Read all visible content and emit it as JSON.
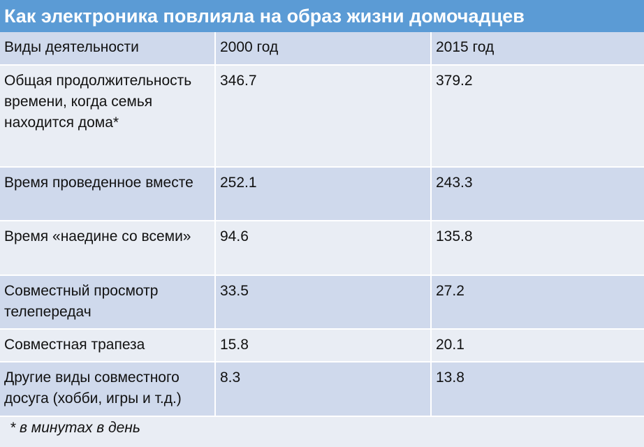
{
  "title": "Как электроника повлияла на образ жизни домочадцев",
  "table": {
    "headers": [
      "Виды деятельности",
      "2000 год",
      "2015 год"
    ],
    "rows": [
      {
        "activity": "Общая продолжительность времени, когда семья находится дома*",
        "y2000": "346.7",
        "y2015": "379.2"
      },
      {
        "activity": "Время проведенное вместе",
        "y2000": "252.1",
        "y2015": "243.3"
      },
      {
        "activity": "Время «наедине со всеми»",
        "y2000": "94.6",
        "y2015": "135.8"
      },
      {
        "activity": "Совместный просмотр телепередач",
        "y2000": "33.5",
        "y2015": "27.2"
      },
      {
        "activity": "Совместная трапеза",
        "y2000": "15.8",
        "y2015": "20.1"
      },
      {
        "activity": "Другие виды совместного досуга (хобби, игры и т.д.)",
        "y2000": "8.3",
        "y2015": "13.8"
      }
    ]
  },
  "footnote": "* в минутах в день",
  "colors": {
    "title_bg": "#5b9bd5",
    "row_dark": "#cfd9ec",
    "row_light": "#e9edf4"
  }
}
